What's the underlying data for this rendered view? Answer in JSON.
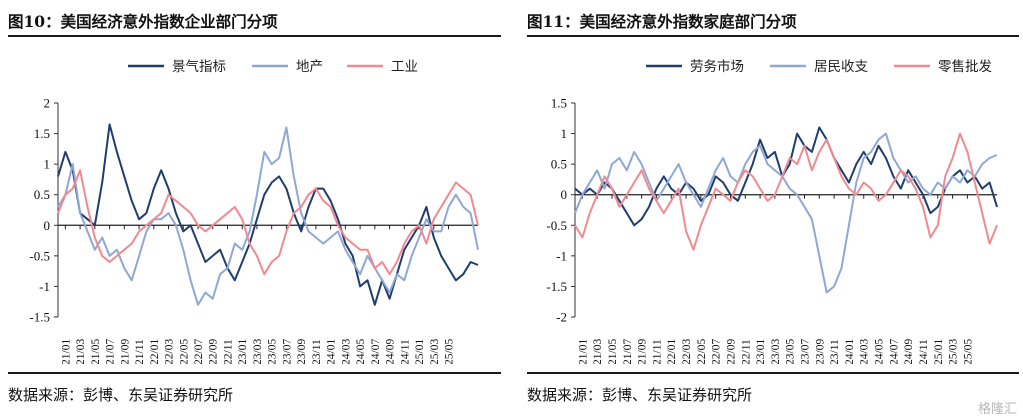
{
  "chart_data": [
    {
      "type": "line",
      "title": "图10：美国经济意外指数企业部门分项",
      "source": "数据来源：彭博、东吴证券研究所",
      "ylim": [
        -1.5,
        2
      ],
      "yticks": [
        "2",
        "1.5",
        "1",
        "0.5",
        "0",
        "-0.5",
        "-1",
        "-1.5"
      ],
      "xticks": [
        "21/01",
        "21/03",
        "21/05",
        "21/07",
        "21/09",
        "21/11",
        "22/01",
        "22/03",
        "22/05",
        "22/07",
        "22/09",
        "22/11",
        "23/01",
        "23/03",
        "23/05",
        "23/07",
        "23/09",
        "23/11",
        "24/01",
        "24/03",
        "24/05",
        "24/07",
        "24/09",
        "24/11",
        "25/01",
        "25/03",
        "25/05"
      ],
      "legend_position": "top",
      "grid": false,
      "series": [
        {
          "name": "景气指标",
          "color": "#1f3d6e",
          "x": [
            0,
            0.5,
            1,
            1.5,
            2,
            2.5,
            3,
            3.5,
            4,
            4.5,
            5,
            5.5,
            6,
            6.5,
            7,
            7.5,
            8,
            8.5,
            9,
            9.5,
            10,
            10.5,
            11,
            11.5,
            12,
            12.5,
            13,
            13.5,
            14,
            14.5,
            15,
            15.5,
            16,
            16.5,
            17,
            17.5,
            18,
            18.5,
            19,
            19.5,
            20,
            20.5,
            21,
            21.5,
            22,
            22.5,
            23,
            23.5,
            24,
            24.5,
            25,
            25.5,
            26,
            26.5,
            27,
            27.5,
            28,
            28.5
          ],
          "y": [
            0.8,
            1.2,
            0.9,
            0.2,
            0.1,
            0.0,
            0.7,
            1.65,
            1.2,
            0.8,
            0.4,
            0.1,
            0.2,
            0.6,
            0.9,
            0.6,
            0.2,
            -0.1,
            0.0,
            -0.3,
            -0.6,
            -0.5,
            -0.4,
            -0.7,
            -0.9,
            -0.6,
            -0.3,
            0.1,
            0.5,
            0.7,
            0.8,
            0.6,
            0.2,
            -0.1,
            0.3,
            0.6,
            0.6,
            0.4,
            0.1,
            -0.3,
            -0.5,
            -1.0,
            -0.9,
            -1.3,
            -0.9,
            -1.2,
            -0.8,
            -0.4,
            -0.2,
            0.0,
            0.3,
            -0.2,
            -0.5,
            -0.7,
            -0.9,
            -0.8,
            -0.6,
            -0.65
          ]
        },
        {
          "name": "地产",
          "color": "#8fa7d4",
          "x": [
            0,
            0.5,
            1,
            1.5,
            2,
            2.5,
            3,
            3.5,
            4,
            4.5,
            5,
            5.5,
            6,
            6.5,
            7,
            7.5,
            8,
            8.5,
            9,
            9.5,
            10,
            10.5,
            11,
            11.5,
            12,
            12.5,
            13,
            13.5,
            14,
            14.5,
            15,
            15.5,
            16,
            16.5,
            17,
            17.5,
            18,
            18.5,
            19,
            19.5,
            20,
            20.5,
            21,
            21.5,
            22,
            22.5,
            23,
            23.5,
            24,
            24.5,
            25,
            25.5,
            26,
            26.5,
            27,
            27.5,
            28,
            28.5
          ],
          "y": [
            0.3,
            0.5,
            1.0,
            0.2,
            -0.1,
            -0.4,
            -0.2,
            -0.5,
            -0.4,
            -0.7,
            -0.9,
            -0.5,
            -0.1,
            0.1,
            0.1,
            0.2,
            0.0,
            -0.4,
            -0.9,
            -1.3,
            -1.1,
            -1.2,
            -0.8,
            -0.7,
            -0.3,
            -0.4,
            -0.1,
            0.5,
            1.2,
            1.0,
            1.1,
            1.6,
            0.8,
            0.2,
            -0.1,
            -0.2,
            -0.3,
            -0.2,
            -0.1,
            -0.4,
            -0.6,
            -0.8,
            -0.5,
            -0.7,
            -0.9,
            -1.1,
            -0.8,
            -0.9,
            -0.5,
            -0.2,
            0.1,
            -0.1,
            -0.1,
            0.3,
            0.5,
            0.3,
            0.2,
            -0.4
          ]
        },
        {
          "name": "工业",
          "color": "#f08a8f",
          "x": [
            0,
            0.5,
            1,
            1.5,
            2,
            2.5,
            3,
            3.5,
            4,
            4.5,
            5,
            5.5,
            6,
            6.5,
            7,
            7.5,
            8,
            8.5,
            9,
            9.5,
            10,
            10.5,
            11,
            11.5,
            12,
            12.5,
            13,
            13.5,
            14,
            14.5,
            15,
            15.5,
            16,
            16.5,
            17,
            17.5,
            18,
            18.5,
            19,
            19.5,
            20,
            20.5,
            21,
            21.5,
            22,
            22.5,
            23,
            23.5,
            24,
            24.5,
            25,
            25.5,
            26,
            26.5,
            27,
            27.5,
            28,
            28.5
          ],
          "y": [
            0.2,
            0.5,
            0.6,
            0.9,
            0.3,
            -0.2,
            -0.5,
            -0.6,
            -0.5,
            -0.4,
            -0.3,
            -0.1,
            0.0,
            0.1,
            0.2,
            0.5,
            0.4,
            0.3,
            0.2,
            0.0,
            -0.1,
            0.0,
            0.1,
            0.2,
            0.3,
            0.1,
            -0.3,
            -0.5,
            -0.8,
            -0.6,
            -0.5,
            -0.1,
            0.2,
            0.3,
            0.5,
            0.6,
            0.4,
            0.3,
            0.0,
            -0.2,
            -0.3,
            -0.4,
            -0.4,
            -0.7,
            -0.6,
            -0.8,
            -0.6,
            -0.3,
            -0.1,
            0.0,
            -0.3,
            0.1,
            0.3,
            0.5,
            0.7,
            0.6,
            0.5,
            0.0
          ]
        }
      ]
    },
    {
      "type": "line",
      "title": "图11：美国经济意外指数家庭部门分项",
      "source": "数据来源：彭博、东吴证券研究所",
      "ylim": [
        -2,
        1.5
      ],
      "yticks": [
        "1.5",
        "1",
        "0.5",
        "0",
        "-0.5",
        "-1",
        "-1.5",
        "-2"
      ],
      "xticks": [
        "21/01",
        "21/03",
        "21/05",
        "21/07",
        "21/09",
        "21/11",
        "22/01",
        "22/03",
        "22/05",
        "22/07",
        "22/09",
        "22/11",
        "23/01",
        "23/03",
        "23/05",
        "23/07",
        "23/09",
        "23/11",
        "24/01",
        "24/03",
        "24/05",
        "24/07",
        "24/09",
        "24/11",
        "25/01",
        "25/03",
        "25/05"
      ],
      "legend_position": "top",
      "grid": false,
      "series": [
        {
          "name": "劳务市场",
          "color": "#1f3d6e",
          "x": [
            0,
            0.5,
            1,
            1.5,
            2,
            2.5,
            3,
            3.5,
            4,
            4.5,
            5,
            5.5,
            6,
            6.5,
            7,
            7.5,
            8,
            8.5,
            9,
            9.5,
            10,
            10.5,
            11,
            11.5,
            12,
            12.5,
            13,
            13.5,
            14,
            14.5,
            15,
            15.5,
            16,
            16.5,
            17,
            17.5,
            18,
            18.5,
            19,
            19.5,
            20,
            20.5,
            21,
            21.5,
            22,
            22.5,
            23,
            23.5,
            24,
            24.5,
            25,
            25.5,
            26,
            26.5,
            27,
            27.5,
            28,
            28.5
          ],
          "y": [
            0.1,
            0.0,
            0.1,
            0.0,
            0.2,
            0.1,
            -0.1,
            -0.3,
            -0.5,
            -0.4,
            -0.2,
            0.1,
            0.3,
            0.1,
            0.0,
            0.2,
            0.1,
            -0.1,
            0.0,
            0.3,
            0.2,
            0.0,
            -0.1,
            0.2,
            0.5,
            0.9,
            0.6,
            0.7,
            0.3,
            0.5,
            1.0,
            0.8,
            0.7,
            1.1,
            0.9,
            0.6,
            0.4,
            0.2,
            0.5,
            0.7,
            0.5,
            0.8,
            0.6,
            0.3,
            0.1,
            0.4,
            0.2,
            0.0,
            -0.3,
            -0.2,
            0.1,
            0.3,
            0.4,
            0.2,
            0.3,
            0.1,
            0.2,
            -0.2
          ]
        },
        {
          "name": "居民收支",
          "color": "#8fa7d4",
          "x": [
            0,
            0.5,
            1,
            1.5,
            2,
            2.5,
            3,
            3.5,
            4,
            4.5,
            5,
            5.5,
            6,
            6.5,
            7,
            7.5,
            8,
            8.5,
            9,
            9.5,
            10,
            10.5,
            11,
            11.5,
            12,
            12.5,
            13,
            13.5,
            14,
            14.5,
            15,
            15.5,
            16,
            16.5,
            17,
            17.5,
            18,
            18.5,
            19,
            19.5,
            20,
            20.5,
            21,
            21.5,
            22,
            22.5,
            23,
            23.5,
            24,
            24.5,
            25,
            25.5,
            26,
            26.5,
            27,
            27.5,
            28,
            28.5
          ],
          "y": [
            -0.3,
            0.0,
            0.2,
            0.4,
            0.1,
            0.5,
            0.6,
            0.4,
            0.7,
            0.5,
            0.2,
            -0.1,
            0.1,
            0.3,
            0.5,
            0.2,
            0.0,
            -0.2,
            0.1,
            0.4,
            0.6,
            0.3,
            0.2,
            0.5,
            0.7,
            0.8,
            0.5,
            0.4,
            0.3,
            0.1,
            0.0,
            -0.2,
            -0.4,
            -1.0,
            -1.6,
            -1.5,
            -1.2,
            -0.5,
            0.2,
            0.6,
            0.7,
            0.9,
            1.0,
            0.6,
            0.4,
            0.2,
            0.3,
            0.1,
            0.0,
            0.2,
            0.1,
            0.3,
            0.2,
            0.4,
            0.3,
            0.5,
            0.6,
            0.65
          ]
        },
        {
          "name": "零售批发",
          "color": "#f08a8f",
          "x": [
            0,
            0.5,
            1,
            1.5,
            2,
            2.5,
            3,
            3.5,
            4,
            4.5,
            5,
            5.5,
            6,
            6.5,
            7,
            7.5,
            8,
            8.5,
            9,
            9.5,
            10,
            10.5,
            11,
            11.5,
            12,
            12.5,
            13,
            13.5,
            14,
            14.5,
            15,
            15.5,
            16,
            16.5,
            17,
            17.5,
            18,
            18.5,
            19,
            19.5,
            20,
            20.5,
            21,
            21.5,
            22,
            22.5,
            23,
            23.5,
            24,
            24.5,
            25,
            25.5,
            26,
            26.5,
            27,
            27.5,
            28,
            28.5
          ],
          "y": [
            -0.5,
            -0.7,
            -0.3,
            0.0,
            0.3,
            0.1,
            -0.2,
            0.0,
            0.2,
            0.4,
            0.1,
            -0.1,
            -0.3,
            -0.1,
            0.1,
            -0.6,
            -0.9,
            -0.5,
            -0.2,
            0.1,
            0.0,
            -0.1,
            0.2,
            0.4,
            0.3,
            0.1,
            -0.1,
            0.0,
            0.3,
            0.6,
            0.5,
            0.8,
            0.4,
            0.7,
            0.9,
            0.6,
            0.3,
            0.1,
            0.0,
            0.2,
            0.1,
            -0.1,
            0.0,
            0.2,
            0.4,
            0.3,
            0.1,
            -0.2,
            -0.7,
            -0.5,
            0.3,
            0.6,
            1.0,
            0.7,
            0.2,
            -0.3,
            -0.8,
            -0.5
          ]
        }
      ]
    }
  ],
  "watermark": "格隆汇"
}
